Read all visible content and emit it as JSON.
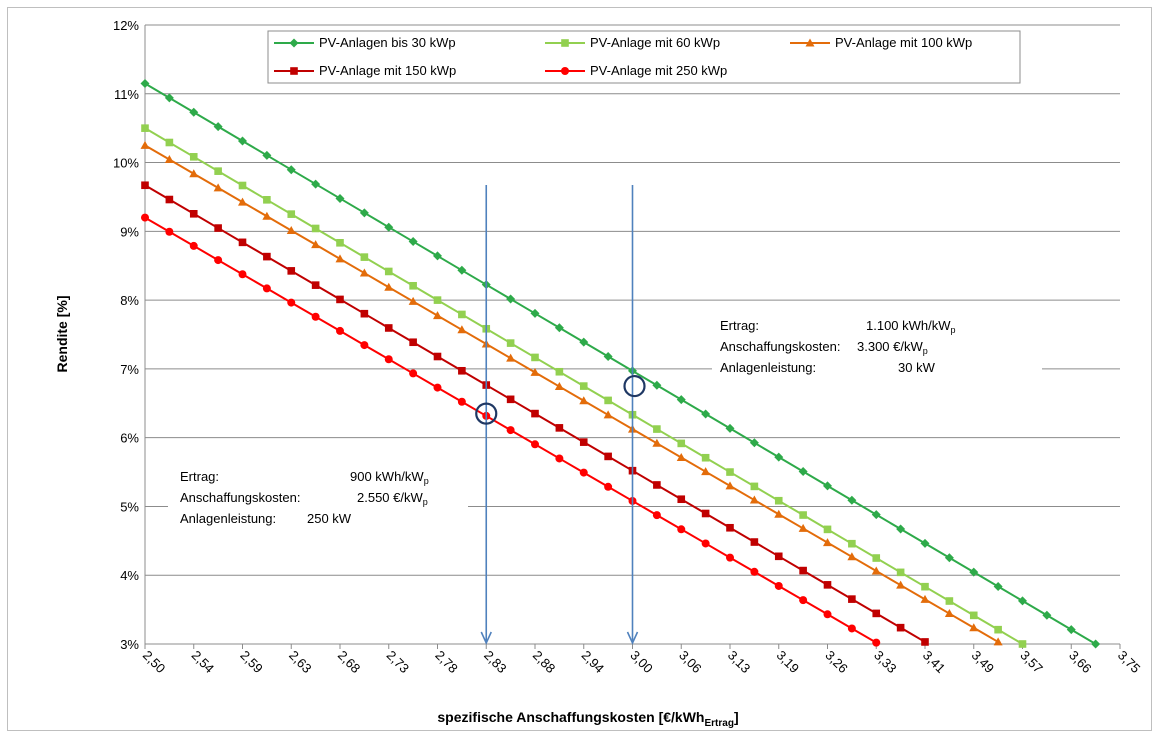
{
  "chart_data": {
    "type": "line",
    "xlabel": {
      "main": "spezifische Anschaffungskosten [€/kWh",
      "sub": "Ertrag",
      "end": "]"
    },
    "ylabel": "Rendite [%]",
    "ylim": [
      3,
      12
    ],
    "y_ticks": [
      "3%",
      "4%",
      "5%",
      "6%",
      "7%",
      "8%",
      "9%",
      "10%",
      "11%",
      "12%"
    ],
    "x_tick_labels": [
      "2,50",
      "2,54",
      "2,59",
      "2,63",
      "2,68",
      "2,73",
      "2,78",
      "2,83",
      "2,88",
      "2,94",
      "3,00",
      "3,06",
      "3,13",
      "3,19",
      "3,26",
      "3,33",
      "3,41",
      "3,49",
      "3,57",
      "3,66",
      "3,75"
    ],
    "grid": "horizontal",
    "legend_position": "top",
    "series": [
      {
        "name": "PV-Anlagen bis 30 kWp",
        "color": "#2eaa4a",
        "marker": "diamond",
        "start": 11.15,
        "end": 3.0,
        "points": 40
      },
      {
        "name": "PV-Anlage mit 60 kWp",
        "color": "#92d050",
        "marker": "square",
        "start": 10.5,
        "end": 3.0,
        "points": 37
      },
      {
        "name": "PV-Anlage mit 100 kWp",
        "color": "#e36c0a",
        "marker": "triangle",
        "start": 10.25,
        "end": 3.03,
        "points": 36
      },
      {
        "name": "PV-Anlage mit 150 kWp",
        "color": "#c00000",
        "marker": "square",
        "start": 9.67,
        "end": 3.03,
        "points": 33
      },
      {
        "name": "PV-Anlage mit 250 kWp",
        "color": "#ff0000",
        "marker": "circle",
        "start": 9.2,
        "end": 3.02,
        "points": 31
      }
    ],
    "markers": [
      {
        "x_label": "2,83",
        "circle_y": 6.35
      },
      {
        "x_label": "3,00",
        "circle_y": 6.75
      }
    ],
    "annotations": [
      {
        "lines": [
          [
            "Ertrag:",
            "1.100 kWh/kW",
            "p"
          ],
          [
            "Anschaffungskosten:",
            "3.300 €/kW",
            "p"
          ],
          [
            "Anlagenleistung:",
            "30 kW",
            ""
          ]
        ]
      },
      {
        "lines": [
          [
            "Ertrag:",
            "900 kWh/kW",
            "p"
          ],
          [
            "Anschaffungskosten:",
            "2.550 €/kW",
            "p"
          ],
          [
            "Anlagenleistung:",
            "250 kW",
            ""
          ]
        ]
      }
    ]
  }
}
